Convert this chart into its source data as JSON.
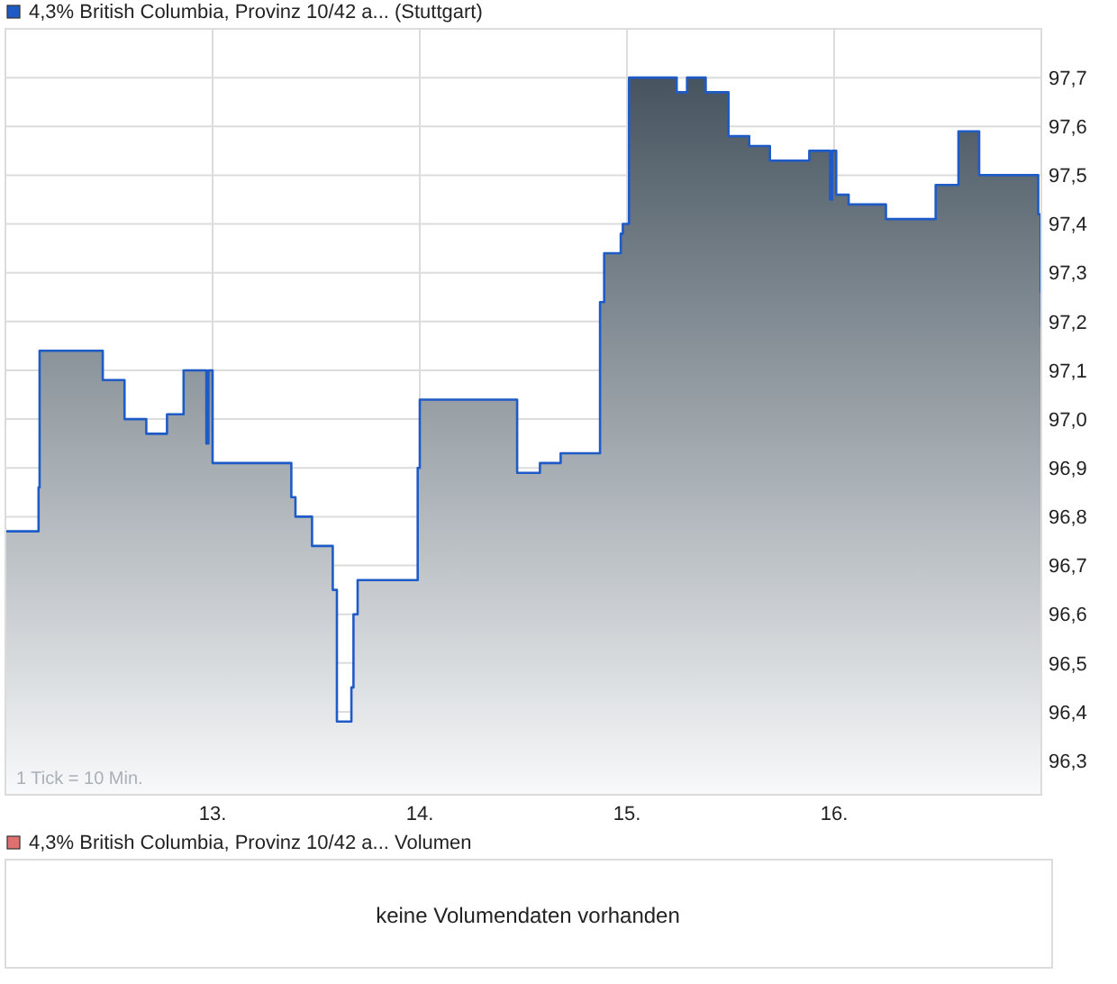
{
  "chart_data": [
    {
      "type": "area",
      "legend": "top left",
      "grid": true,
      "annotations": [
        "1 Tick = 10 Min."
      ],
      "xlim": [
        12,
        17
      ],
      "xticks": [
        {
          "value": 13,
          "label": "13."
        },
        {
          "value": 14,
          "label": "14."
        },
        {
          "value": 15,
          "label": "15."
        },
        {
          "value": 16,
          "label": "16."
        }
      ],
      "ylim": [
        96.23,
        97.8
      ],
      "yticks": [
        {
          "value": 96.3,
          "label": "96,3"
        },
        {
          "value": 96.4,
          "label": "96,4"
        },
        {
          "value": 96.5,
          "label": "96,5"
        },
        {
          "value": 96.6,
          "label": "96,6"
        },
        {
          "value": 96.7,
          "label": "96,7"
        },
        {
          "value": 96.8,
          "label": "96,8"
        },
        {
          "value": 96.9,
          "label": "96,9"
        },
        {
          "value": 97.0,
          "label": "97,0"
        },
        {
          "value": 97.1,
          "label": "97,1"
        },
        {
          "value": 97.2,
          "label": "97,2"
        },
        {
          "value": 97.3,
          "label": "97,3"
        },
        {
          "value": 97.4,
          "label": "97,4"
        },
        {
          "value": 97.5,
          "label": "97,5"
        },
        {
          "value": 97.6,
          "label": "97,6"
        },
        {
          "value": 97.7,
          "label": "97,7"
        }
      ],
      "series": [
        {
          "name": "4,3% British Columbia, Provinz 10/42 a... (Stuttgart)",
          "color": "#1f5bc6",
          "x": [
            12.0,
            12.16,
            12.16,
            12.165,
            12.165,
            12.47,
            12.47,
            12.575,
            12.575,
            12.68,
            12.68,
            12.78,
            12.78,
            12.86,
            12.86,
            12.97,
            12.97,
            12.98,
            12.98,
            13.0,
            13.0,
            13.38,
            13.38,
            13.4,
            13.4,
            13.48,
            13.48,
            13.58,
            13.58,
            13.6,
            13.6,
            13.67,
            13.67,
            13.68,
            13.68,
            13.7,
            13.7,
            13.99,
            13.99,
            14.0,
            14.0,
            14.47,
            14.47,
            14.58,
            14.58,
            14.68,
            14.68,
            14.87,
            14.87,
            14.89,
            14.89,
            14.97,
            14.97,
            14.98,
            14.98,
            15.01,
            15.01,
            15.24,
            15.24,
            15.29,
            15.29,
            15.38,
            15.38,
            15.49,
            15.49,
            15.59,
            15.59,
            15.69,
            15.69,
            15.88,
            15.88,
            15.98,
            15.98,
            15.99,
            15.99,
            16.01,
            16.01,
            16.07,
            16.07,
            16.25,
            16.25,
            16.49,
            16.49,
            16.6,
            16.6,
            16.7,
            16.7,
            16.985,
            16.985,
            16.997,
            16.997,
            17.0,
            17.0
          ],
          "values": [
            96.77,
            96.77,
            96.86,
            96.86,
            97.14,
            97.14,
            97.08,
            97.08,
            97.0,
            97.0,
            96.97,
            96.97,
            97.01,
            97.01,
            97.1,
            97.1,
            96.95,
            96.95,
            97.1,
            97.1,
            96.91,
            96.91,
            96.84,
            96.84,
            96.8,
            96.8,
            96.74,
            96.74,
            96.65,
            96.65,
            96.38,
            96.38,
            96.45,
            96.45,
            96.6,
            96.6,
            96.67,
            96.67,
            96.9,
            96.9,
            97.04,
            97.04,
            96.89,
            96.89,
            96.91,
            96.91,
            96.93,
            96.93,
            97.24,
            97.24,
            97.34,
            97.34,
            97.38,
            97.38,
            97.4,
            97.4,
            97.7,
            97.7,
            97.67,
            97.67,
            97.7,
            97.7,
            97.67,
            97.67,
            97.58,
            97.58,
            97.56,
            97.56,
            97.53,
            97.53,
            97.55,
            97.55,
            97.45,
            97.45,
            97.55,
            97.55,
            97.46,
            97.46,
            97.44,
            97.44,
            97.41,
            97.41,
            97.48,
            97.48,
            97.59,
            97.59,
            97.5,
            97.5,
            97.42,
            97.42,
            97.26,
            97.26,
            97.19
          ]
        }
      ]
    },
    {
      "type": "other",
      "title": "4,3% British Columbia, Provinz 10/42 a... Volumen",
      "annotations": [
        "keine Volumendaten vorhanden"
      ]
    }
  ]
}
